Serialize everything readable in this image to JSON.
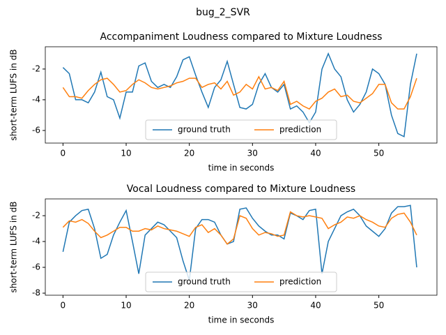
{
  "title": "bug_2_SVR",
  "chart_data": [
    {
      "type": "line",
      "title": "Accompaniment Loudness compared to Mixture Loudness",
      "x_label": "time in seconds",
      "y_label": "short-term LUFS in dB",
      "x": [
        0,
        1,
        2,
        3,
        4,
        5,
        6,
        7,
        8,
        9,
        10,
        11,
        12,
        13,
        14,
        15,
        16,
        17,
        18,
        19,
        20,
        21,
        22,
        23,
        24,
        25,
        26,
        27,
        28,
        29,
        30,
        31,
        32,
        33,
        34,
        35,
        36,
        37,
        38,
        39,
        40,
        41,
        42,
        43,
        44,
        45,
        46,
        47,
        48,
        49,
        50,
        51,
        52,
        53,
        54,
        55,
        56
      ],
      "series": [
        {
          "name": "ground truth",
          "color": "#1f77b4",
          "values": [
            -1.9,
            -2.3,
            -4.0,
            -4.0,
            -4.2,
            -3.5,
            -2.2,
            -3.8,
            -4.0,
            -5.2,
            -3.5,
            -3.5,
            -1.8,
            -1.6,
            -2.8,
            -3.2,
            -3.0,
            -3.2,
            -2.5,
            -1.4,
            -1.2,
            -2.4,
            -3.5,
            -4.5,
            -3.2,
            -2.7,
            -1.5,
            -3.0,
            -4.5,
            -4.6,
            -4.3,
            -3.0,
            -2.3,
            -3.2,
            -3.5,
            -3.0,
            -4.6,
            -4.4,
            -4.8,
            -5.5,
            -4.8,
            -2.0,
            -1.0,
            -2.0,
            -2.5,
            -4.0,
            -4.8,
            -4.3,
            -3.5,
            -2.0,
            -2.3,
            -3.0,
            -5.0,
            -6.2,
            -6.4,
            -3.0,
            -1.0
          ]
        },
        {
          "name": "prediction",
          "color": "#ff7f0e",
          "values": [
            -3.2,
            -3.8,
            -3.8,
            -3.9,
            -3.4,
            -3.0,
            -2.7,
            -2.6,
            -3.0,
            -3.5,
            -3.4,
            -3.0,
            -2.7,
            -2.9,
            -3.2,
            -3.3,
            -3.2,
            -3.1,
            -2.9,
            -2.8,
            -2.6,
            -2.6,
            -3.2,
            -3.0,
            -2.9,
            -3.3,
            -2.8,
            -3.7,
            -3.5,
            -3.0,
            -3.3,
            -2.5,
            -3.3,
            -3.2,
            -3.4,
            -2.8,
            -4.3,
            -4.1,
            -4.4,
            -4.6,
            -4.1,
            -3.9,
            -3.5,
            -3.3,
            -3.8,
            -3.7,
            -4.1,
            -4.2,
            -3.9,
            -3.6,
            -3.0,
            -3.0,
            -4.2,
            -4.6,
            -4.6,
            -3.8,
            -2.6
          ]
        }
      ],
      "xlim": [
        -2.8,
        59.2
      ],
      "ylim": [
        -6.82,
        -0.55
      ],
      "xticks": [
        0,
        10,
        20,
        30,
        40,
        50
      ],
      "yticks": [
        -6,
        -4,
        -2
      ],
      "legend": "lower center"
    },
    {
      "type": "line",
      "title": "Vocal Loudness compared to Mixture Loudness",
      "x_label": "time in seconds",
      "y_label": "short-term LUFS in dB",
      "x": [
        0,
        1,
        2,
        3,
        4,
        5,
        6,
        7,
        8,
        9,
        10,
        11,
        12,
        13,
        14,
        15,
        16,
        17,
        18,
        19,
        20,
        21,
        22,
        23,
        24,
        25,
        26,
        27,
        28,
        29,
        30,
        31,
        32,
        33,
        34,
        35,
        36,
        37,
        38,
        39,
        40,
        41,
        42,
        43,
        44,
        45,
        46,
        47,
        48,
        49,
        50,
        51,
        52,
        53,
        54,
        55,
        56
      ],
      "series": [
        {
          "name": "ground truth",
          "color": "#1f77b4",
          "values": [
            -4.8,
            -2.5,
            -2.0,
            -1.6,
            -1.5,
            -3.0,
            -5.3,
            -5.0,
            -3.5,
            -2.5,
            -1.6,
            -4.0,
            -6.5,
            -3.5,
            -3.0,
            -2.5,
            -2.7,
            -3.2,
            -3.7,
            -5.5,
            -7.0,
            -3.0,
            -2.3,
            -2.3,
            -2.5,
            -3.5,
            -4.2,
            -4.0,
            -1.5,
            -1.4,
            -2.2,
            -2.8,
            -3.2,
            -3.5,
            -3.5,
            -3.8,
            -1.8,
            -2.0,
            -2.3,
            -1.6,
            -1.5,
            -6.5,
            -4.0,
            -3.0,
            -2.0,
            -1.7,
            -1.5,
            -2.0,
            -2.8,
            -3.2,
            -3.6,
            -3.0,
            -1.8,
            -1.3,
            -1.3,
            -1.2,
            -6.0
          ]
        },
        {
          "name": "prediction",
          "color": "#ff7f0e",
          "values": [
            -2.9,
            -2.4,
            -2.5,
            -2.3,
            -2.6,
            -3.2,
            -3.7,
            -3.5,
            -3.2,
            -2.9,
            -2.9,
            -3.2,
            -3.2,
            -3.0,
            -3.1,
            -2.8,
            -3.0,
            -3.1,
            -3.2,
            -3.4,
            -3.6,
            -2.9,
            -2.7,
            -3.3,
            -3.0,
            -3.5,
            -4.2,
            -3.8,
            -2.0,
            -2.2,
            -3.0,
            -3.5,
            -3.3,
            -3.4,
            -3.6,
            -3.5,
            -1.7,
            -2.0,
            -2.1,
            -2.0,
            -2.1,
            -2.2,
            -3.0,
            -2.7,
            -2.5,
            -2.1,
            -2.2,
            -2.0,
            -2.3,
            -2.5,
            -2.8,
            -2.9,
            -2.2,
            -1.9,
            -1.8,
            -2.5,
            -3.5
          ]
        }
      ],
      "xlim": [
        -2.8,
        59.2
      ],
      "ylim": [
        -8.16,
        -0.7
      ],
      "xticks": [
        0,
        10,
        20,
        30,
        40,
        50
      ],
      "yticks": [
        -8,
        -6,
        -4,
        -2
      ],
      "legend": "lower center"
    }
  ]
}
